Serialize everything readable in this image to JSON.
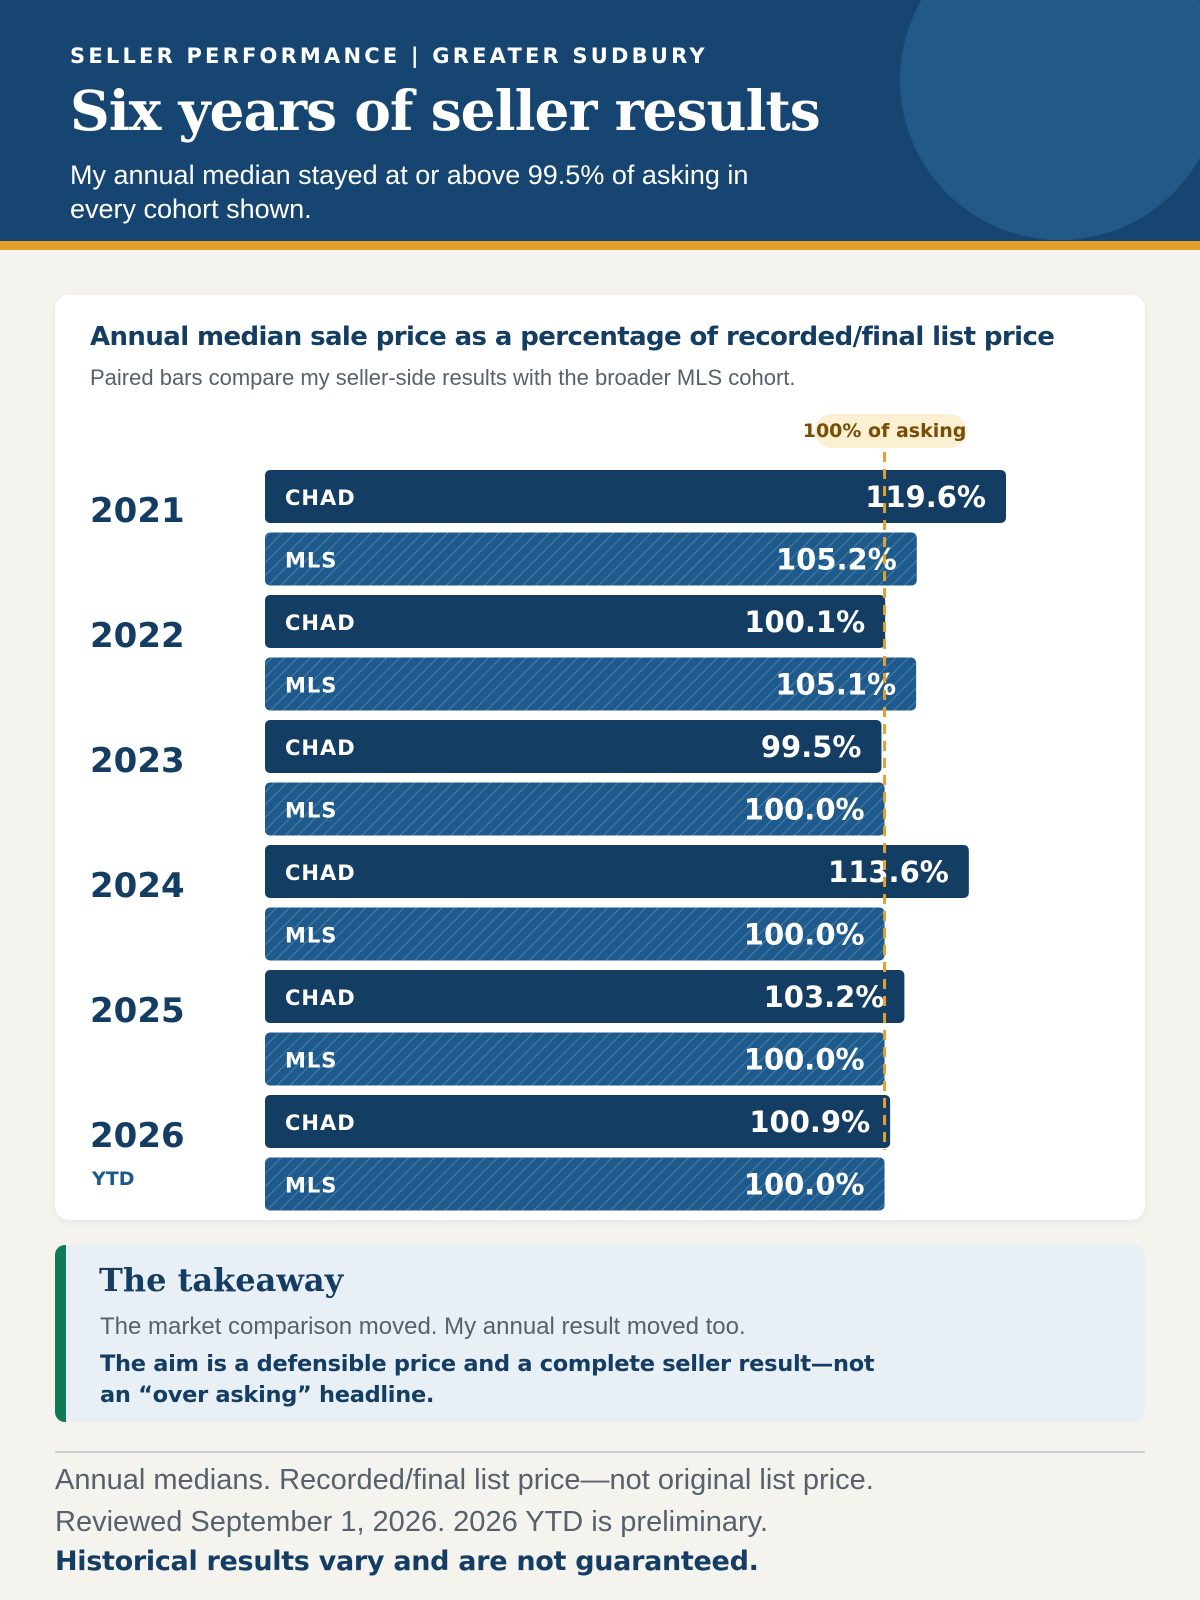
{
  "header": {
    "eyebrow": "SELLER PERFORMANCE | GREATER SUDBURY",
    "title": "Six years of seller results",
    "subtitle": "My annual median stayed at or above 99.5% of asking in every cohort shown."
  },
  "colors": {
    "header_bg": "#164572",
    "accent_rule": "#e2a12e",
    "chad_bar": "#143d63",
    "mls_bar": "#1f5a8c",
    "reference_line": "#e2a12e",
    "takeaway_rule": "#0f7a56"
  },
  "chart_data": {
    "type": "bar",
    "orientation": "horizontal",
    "title": "Annual median sale price as a percentage of recorded/final list price",
    "subtitle": "Paired bars compare my seller-side results with the broader MLS cohort.",
    "reference_line": {
      "value": 100,
      "label": "100% of asking"
    },
    "categories": [
      {
        "year": "2021",
        "note": ""
      },
      {
        "year": "2022",
        "note": ""
      },
      {
        "year": "2023",
        "note": ""
      },
      {
        "year": "2024",
        "note": ""
      },
      {
        "year": "2025",
        "note": ""
      },
      {
        "year": "2026",
        "note": "YTD"
      }
    ],
    "series": [
      {
        "name": "CHAD",
        "pattern": "solid",
        "values": [
          119.6,
          100.1,
          99.5,
          113.6,
          103.2,
          100.9
        ]
      },
      {
        "name": "MLS",
        "pattern": "hatched",
        "values": [
          105.2,
          105.1,
          100.0,
          100.0,
          100.0,
          100.0
        ]
      }
    ],
    "value_suffix": "%",
    "grid": false,
    "legend": "none"
  },
  "takeaway": {
    "title": "The takeaway",
    "text": "The market comparison moved. My annual result moved too.",
    "emphasis": "The aim is a defensible price and a complete seller result—not an “over asking” headline."
  },
  "footer": {
    "line1": "Annual medians. Recorded/final list price—not original list price.",
    "line2": "Reviewed September 1, 2026. 2026 YTD is preliminary.",
    "line3": "Historical results vary and are not guaranteed."
  }
}
